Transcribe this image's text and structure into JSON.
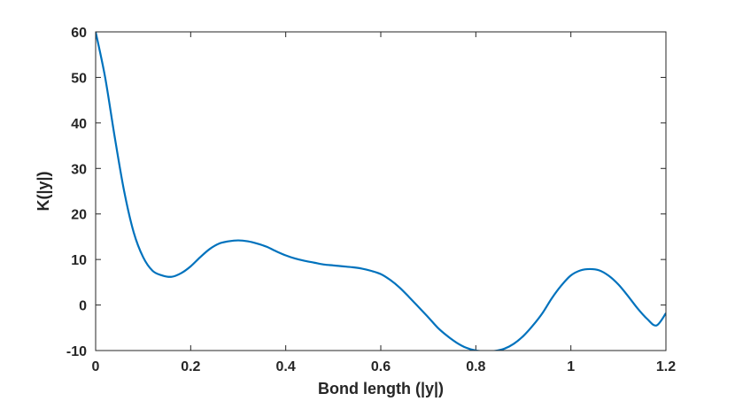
{
  "chart_data": {
    "type": "line",
    "title": "",
    "xlabel": "Bond length (|y|)",
    "ylabel": "K(|y|)",
    "xlim": [
      0,
      1.2
    ],
    "ylim": [
      -10,
      60
    ],
    "x_ticks": [
      "0",
      "0.2",
      "0.4",
      "0.6",
      "0.8",
      "1",
      "1.2"
    ],
    "x_tick_values": [
      0,
      0.2,
      0.4,
      0.6,
      0.8,
      1.0,
      1.2
    ],
    "y_ticks": [
      "-10",
      "0",
      "10",
      "20",
      "30",
      "40",
      "50",
      "60"
    ],
    "y_tick_values": [
      -10,
      0,
      10,
      20,
      30,
      40,
      50,
      60
    ],
    "grid": false,
    "box": true,
    "series": [
      {
        "color": "#0072BD",
        "x": [
          0,
          0.02,
          0.04,
          0.06,
          0.08,
          0.1,
          0.12,
          0.14,
          0.16,
          0.18,
          0.2,
          0.22,
          0.24,
          0.26,
          0.28,
          0.3,
          0.32,
          0.34,
          0.36,
          0.38,
          0.4,
          0.42,
          0.44,
          0.46,
          0.48,
          0.5,
          0.52,
          0.54,
          0.56,
          0.58,
          0.6,
          0.62,
          0.64,
          0.66,
          0.68,
          0.7,
          0.72,
          0.74,
          0.76,
          0.78,
          0.8,
          0.82,
          0.84,
          0.86,
          0.88,
          0.9,
          0.92,
          0.94,
          0.96,
          0.98,
          1.0,
          1.02,
          1.04,
          1.06,
          1.08,
          1.1,
          1.12,
          1.14,
          1.16,
          1.18,
          1.2
        ],
        "y": [
          60,
          50,
          37,
          25,
          16,
          10.5,
          7.5,
          6.5,
          6.2,
          7,
          8.5,
          10.5,
          12.3,
          13.5,
          14,
          14.2,
          14,
          13.5,
          12.8,
          11.8,
          10.9,
          10.2,
          9.7,
          9.3,
          8.9,
          8.7,
          8.5,
          8.3,
          8.0,
          7.5,
          6.8,
          5.5,
          3.8,
          1.7,
          -0.5,
          -2.7,
          -5.0,
          -6.8,
          -8.3,
          -9.4,
          -10,
          -10.2,
          -10.1,
          -9.6,
          -8.5,
          -6.8,
          -4.5,
          -1.8,
          1.5,
          4.3,
          6.5,
          7.6,
          7.9,
          7.6,
          6.4,
          4.5,
          2.0,
          -0.7,
          -3.0,
          -4.5,
          -1.8
        ]
      }
    ]
  }
}
